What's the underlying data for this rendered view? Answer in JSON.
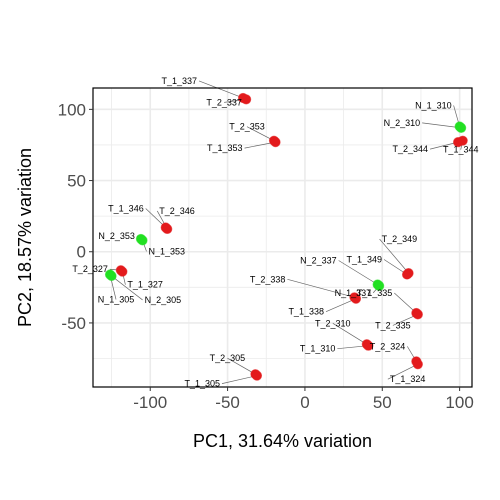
{
  "chart_data": {
    "type": "scatter",
    "xlabel": "PC1, 31.64% variation",
    "ylabel": "PC2, 18.57% variation",
    "xlim": [
      -137,
      108
    ],
    "ylim": [
      -95,
      115
    ],
    "xticks": [
      -100,
      -50,
      0,
      50,
      100
    ],
    "yticks": [
      -50,
      0,
      50,
      100
    ],
    "grid": true,
    "colors": {
      "tumor": "#e31a1c",
      "normal": "#22e022",
      "grid": "#ebebeb",
      "frame": "#000000",
      "leader": "#666666"
    },
    "points": [
      {
        "label": "T_1_337",
        "x": -40,
        "y": 108,
        "group": "tumor"
      },
      {
        "label": "T_2_337",
        "x": -38,
        "y": 107,
        "group": "tumor"
      },
      {
        "label": "T_2_353",
        "x": -20,
        "y": 78,
        "group": "tumor"
      },
      {
        "label": "T_1_353",
        "x": -19,
        "y": 77,
        "group": "tumor"
      },
      {
        "label": "N_1_310",
        "x": 100,
        "y": 88,
        "group": "normal"
      },
      {
        "label": "N_2_310",
        "x": 101,
        "y": 87,
        "group": "normal"
      },
      {
        "label": "T_2_344",
        "x": 99,
        "y": 77,
        "group": "tumor"
      },
      {
        "label": "T_1_344",
        "x": 102,
        "y": 78,
        "group": "tumor"
      },
      {
        "label": "T_1_346",
        "x": -90,
        "y": 17,
        "group": "tumor"
      },
      {
        "label": "T_2_346",
        "x": -89,
        "y": 16,
        "group": "tumor"
      },
      {
        "label": "N_2_353",
        "x": -106,
        "y": 9,
        "group": "normal"
      },
      {
        "label": "N_1_353",
        "x": -105,
        "y": 8,
        "group": "normal"
      },
      {
        "label": "T_2_327",
        "x": -119,
        "y": -13,
        "group": "tumor"
      },
      {
        "label": "T_1_327",
        "x": -118,
        "y": -14,
        "group": "tumor"
      },
      {
        "label": "N_1_305",
        "x": -126,
        "y": -16,
        "group": "normal"
      },
      {
        "label": "N_2_305",
        "x": -125,
        "y": -17,
        "group": "normal"
      },
      {
        "label": "T_2_349",
        "x": 67,
        "y": -15,
        "group": "tumor"
      },
      {
        "label": "T_1_349",
        "x": 66,
        "y": -16,
        "group": "tumor"
      },
      {
        "label": "N_2_337",
        "x": 47,
        "y": -23,
        "group": "normal"
      },
      {
        "label": "N_1_337",
        "x": 48,
        "y": -24,
        "group": "normal"
      },
      {
        "label": "T_2_338",
        "x": 32,
        "y": -32,
        "group": "tumor"
      },
      {
        "label": "T_1_338",
        "x": 33,
        "y": -33,
        "group": "tumor"
      },
      {
        "label": "T_1_335",
        "x": 72,
        "y": -43,
        "group": "tumor"
      },
      {
        "label": "T_2_335",
        "x": 73,
        "y": -44,
        "group": "tumor"
      },
      {
        "label": "T_2_310",
        "x": 40,
        "y": -65,
        "group": "tumor"
      },
      {
        "label": "T_1_310",
        "x": 41,
        "y": -66,
        "group": "tumor"
      },
      {
        "label": "T_2_324",
        "x": 72,
        "y": -77,
        "group": "tumor"
      },
      {
        "label": "T_1_324",
        "x": 73,
        "y": -79,
        "group": "tumor"
      },
      {
        "label": "T_2_305",
        "x": -32,
        "y": -86,
        "group": "tumor"
      },
      {
        "label": "T_1_305",
        "x": -31,
        "y": -87,
        "group": "tumor"
      }
    ]
  }
}
